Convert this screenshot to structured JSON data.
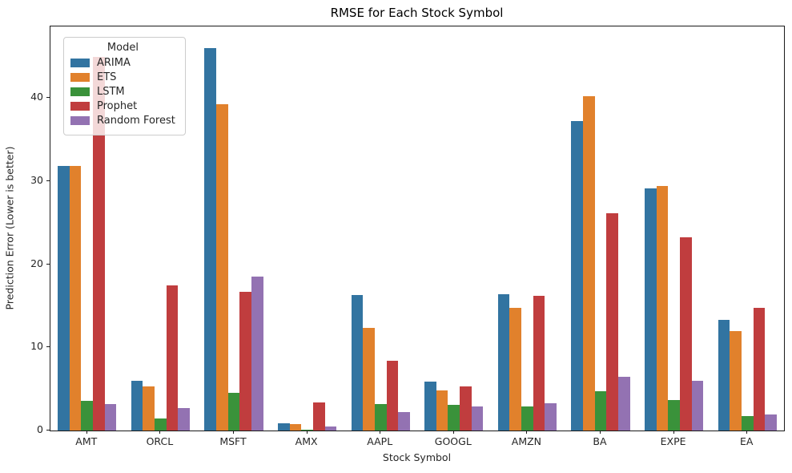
{
  "chart_data": {
    "type": "bar",
    "title": "RMSE for Each Stock Symbol",
    "xlabel": "Stock Symbol",
    "ylabel": "Prediction Error (Lower is better)",
    "categories": [
      "AMT",
      "ORCL",
      "MSFT",
      "AMX",
      "AAPL",
      "GOOGL",
      "AMZN",
      "BA",
      "EXPE",
      "EA"
    ],
    "series": [
      {
        "name": "ARIMA",
        "color": "#3274a1",
        "values": [
          31.8,
          6.0,
          46.0,
          0.9,
          16.3,
          5.9,
          16.4,
          37.2,
          29.1,
          13.3
        ]
      },
      {
        "name": "ETS",
        "color": "#e1812c",
        "values": [
          31.8,
          5.3,
          39.2,
          0.8,
          12.3,
          4.8,
          14.8,
          40.2,
          29.4,
          12.0
        ]
      },
      {
        "name": "LSTM",
        "color": "#3a923a",
        "values": [
          3.6,
          1.4,
          4.5,
          0.1,
          3.2,
          3.1,
          2.9,
          4.7,
          3.7,
          1.7
        ]
      },
      {
        "name": "Prophet",
        "color": "#c03d3e",
        "values": [
          44.9,
          17.5,
          16.7,
          3.4,
          8.4,
          5.3,
          16.2,
          26.1,
          23.2,
          14.8
        ]
      },
      {
        "name": "Random Forest",
        "color": "#9372b2",
        "values": [
          3.2,
          2.7,
          18.5,
          0.5,
          2.2,
          2.9,
          3.3,
          6.5,
          6.0,
          1.9
        ]
      }
    ],
    "ylim": [
      0,
      48.6
    ],
    "yticks": [
      0,
      10,
      20,
      30,
      40
    ],
    "legend_title": "Model",
    "legend_position": "upper left",
    "grid": false,
    "group_width_fraction": 0.8
  }
}
